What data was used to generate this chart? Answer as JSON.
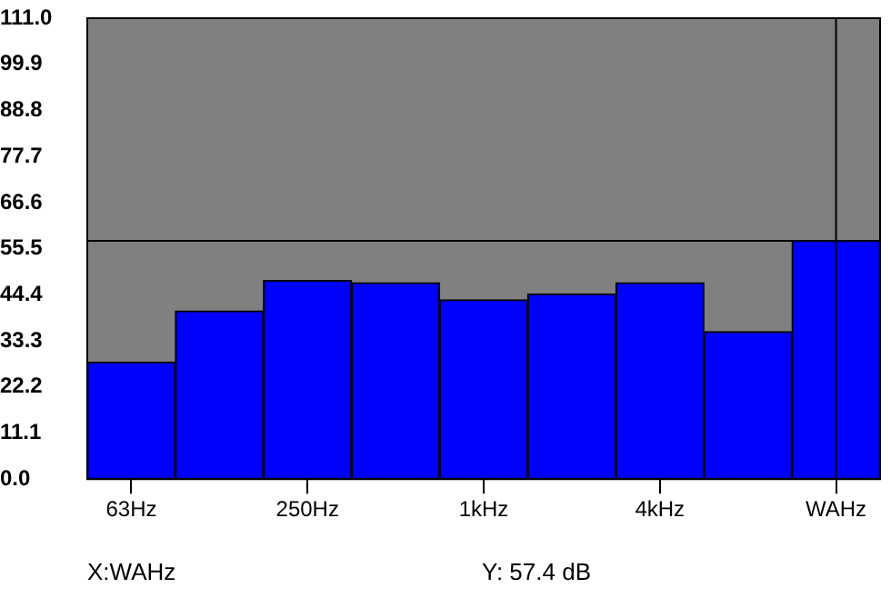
{
  "chart_data": {
    "type": "bar",
    "categories": [
      "63Hz",
      null,
      "250Hz",
      null,
      "1kHz",
      null,
      "4kHz",
      null,
      "WAHz"
    ],
    "values": [
      28.2,
      40.5,
      47.8,
      47.3,
      43.2,
      44.6,
      47.3,
      35.5,
      57.4
    ],
    "color": "#0000ff",
    "ylim": [
      0,
      111
    ],
    "yticks": [
      {
        "value": 0,
        "label": "0.0"
      },
      {
        "value": 11.1,
        "label": "11.1"
      },
      {
        "value": 22.2,
        "label": "22.2"
      },
      {
        "value": 33.3,
        "label": "33.3"
      },
      {
        "value": 44.4,
        "label": "44.4"
      },
      {
        "value": 55.5,
        "label": "55.5"
      },
      {
        "value": 66.6,
        "label": "66.6"
      },
      {
        "value": 77.7,
        "label": "77.7"
      },
      {
        "value": 88.8,
        "label": "88.8"
      },
      {
        "value": 99.9,
        "label": "99.9"
      },
      {
        "value": 111,
        "label": "111.0"
      }
    ],
    "grid": false,
    "legend": false,
    "ref_lines": [
      {
        "axis": "y",
        "value": 57.4,
        "color": "#000000"
      },
      {
        "axis": "x",
        "value": "WAHz",
        "color": "#000000"
      }
    ],
    "annotations": [
      "X:WAHz",
      "Y: 57.4 dB"
    ]
  }
}
